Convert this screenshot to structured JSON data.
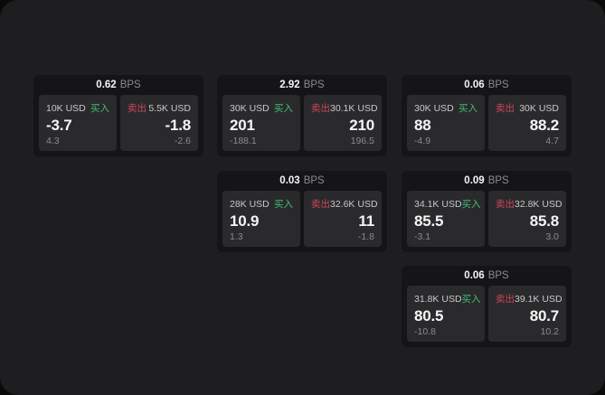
{
  "labels": {
    "bps_unit": "BPS",
    "buy": "买入",
    "sell": "卖出"
  },
  "colors": {
    "page_bg": "#1e1e20",
    "card_bg": "#151517",
    "panel_bg": "#2a2a2c",
    "value_white": "#f5f5f6",
    "label_gray": "#c9c9cb",
    "muted_gray": "#8b8b8d",
    "buy_green": "#41bf77",
    "sell_red": "#cb4659"
  },
  "cards": [
    {
      "col": 1,
      "row": 1,
      "bps": "0.62",
      "buy": {
        "amount": "10K USD",
        "value": "-3.7",
        "sub": "4.3"
      },
      "sell": {
        "amount": "5.5K USD",
        "value": "-1.8",
        "sub": "-2.6"
      }
    },
    {
      "col": 2,
      "row": 1,
      "bps": "2.92",
      "buy": {
        "amount": "30K USD",
        "value": "201",
        "sub": "-188.1"
      },
      "sell": {
        "amount": "30.1K USD",
        "value": "210",
        "sub": "196.5"
      }
    },
    {
      "col": 3,
      "row": 1,
      "bps": "0.06",
      "buy": {
        "amount": "30K USD",
        "value": "88",
        "sub": "-4.9"
      },
      "sell": {
        "amount": "30K USD",
        "value": "88.2",
        "sub": "4.7"
      }
    },
    {
      "col": 2,
      "row": 2,
      "bps": "0.03",
      "buy": {
        "amount": "28K USD",
        "value": "10.9",
        "sub": "1.3"
      },
      "sell": {
        "amount": "32.6K USD",
        "value": "11",
        "sub": "-1.8"
      }
    },
    {
      "col": 3,
      "row": 2,
      "bps": "0.09",
      "buy": {
        "amount": "34.1K USD",
        "value": "85.5",
        "sub": "-3.1"
      },
      "sell": {
        "amount": "32.8K USD",
        "value": "85.8",
        "sub": "3.0"
      }
    },
    {
      "col": 3,
      "row": 3,
      "bps": "0.06",
      "buy": {
        "amount": "31.8K USD",
        "value": "80.5",
        "sub": "-10.8"
      },
      "sell": {
        "amount": "39.1K USD",
        "value": "80.7",
        "sub": "10.2"
      }
    }
  ]
}
